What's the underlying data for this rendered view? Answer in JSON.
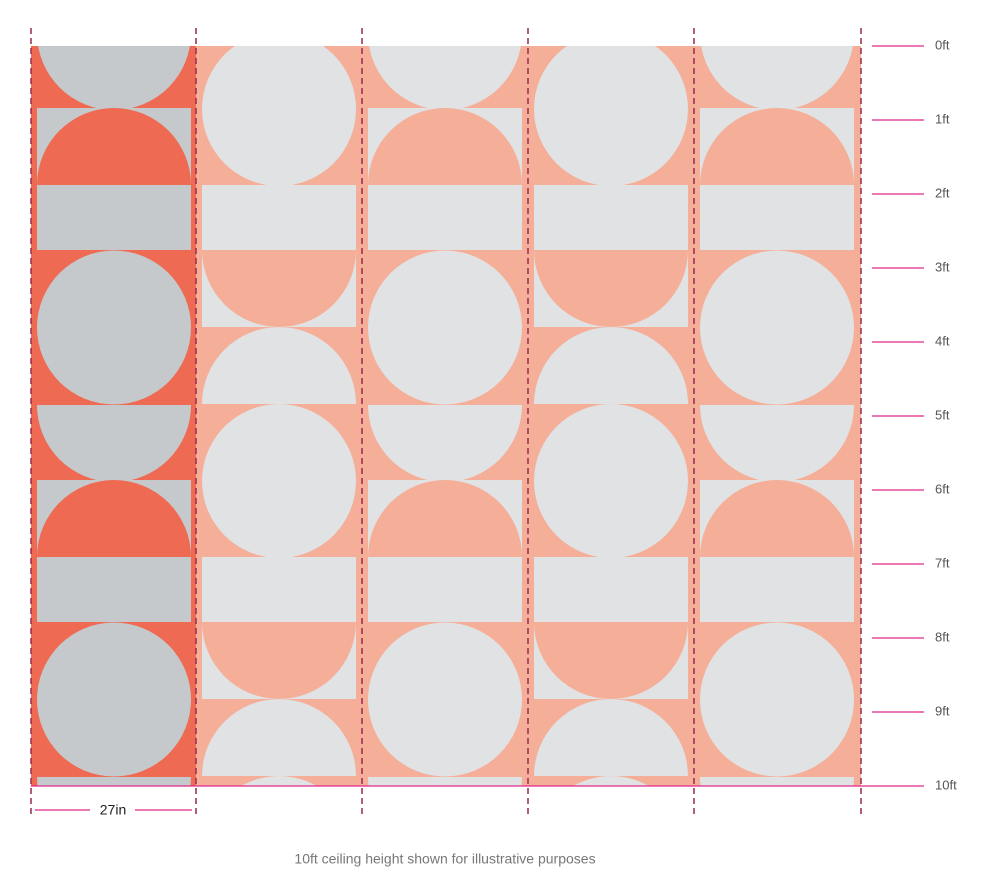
{
  "height_labels": [
    "0ft",
    "1ft",
    "2ft",
    "3ft",
    "4ft",
    "5ft",
    "6ft",
    "7ft",
    "8ft",
    "9ft",
    "10ft"
  ],
  "width_label": "27in",
  "caption": "10ft ceiling height shown for illustrative purposes"
}
